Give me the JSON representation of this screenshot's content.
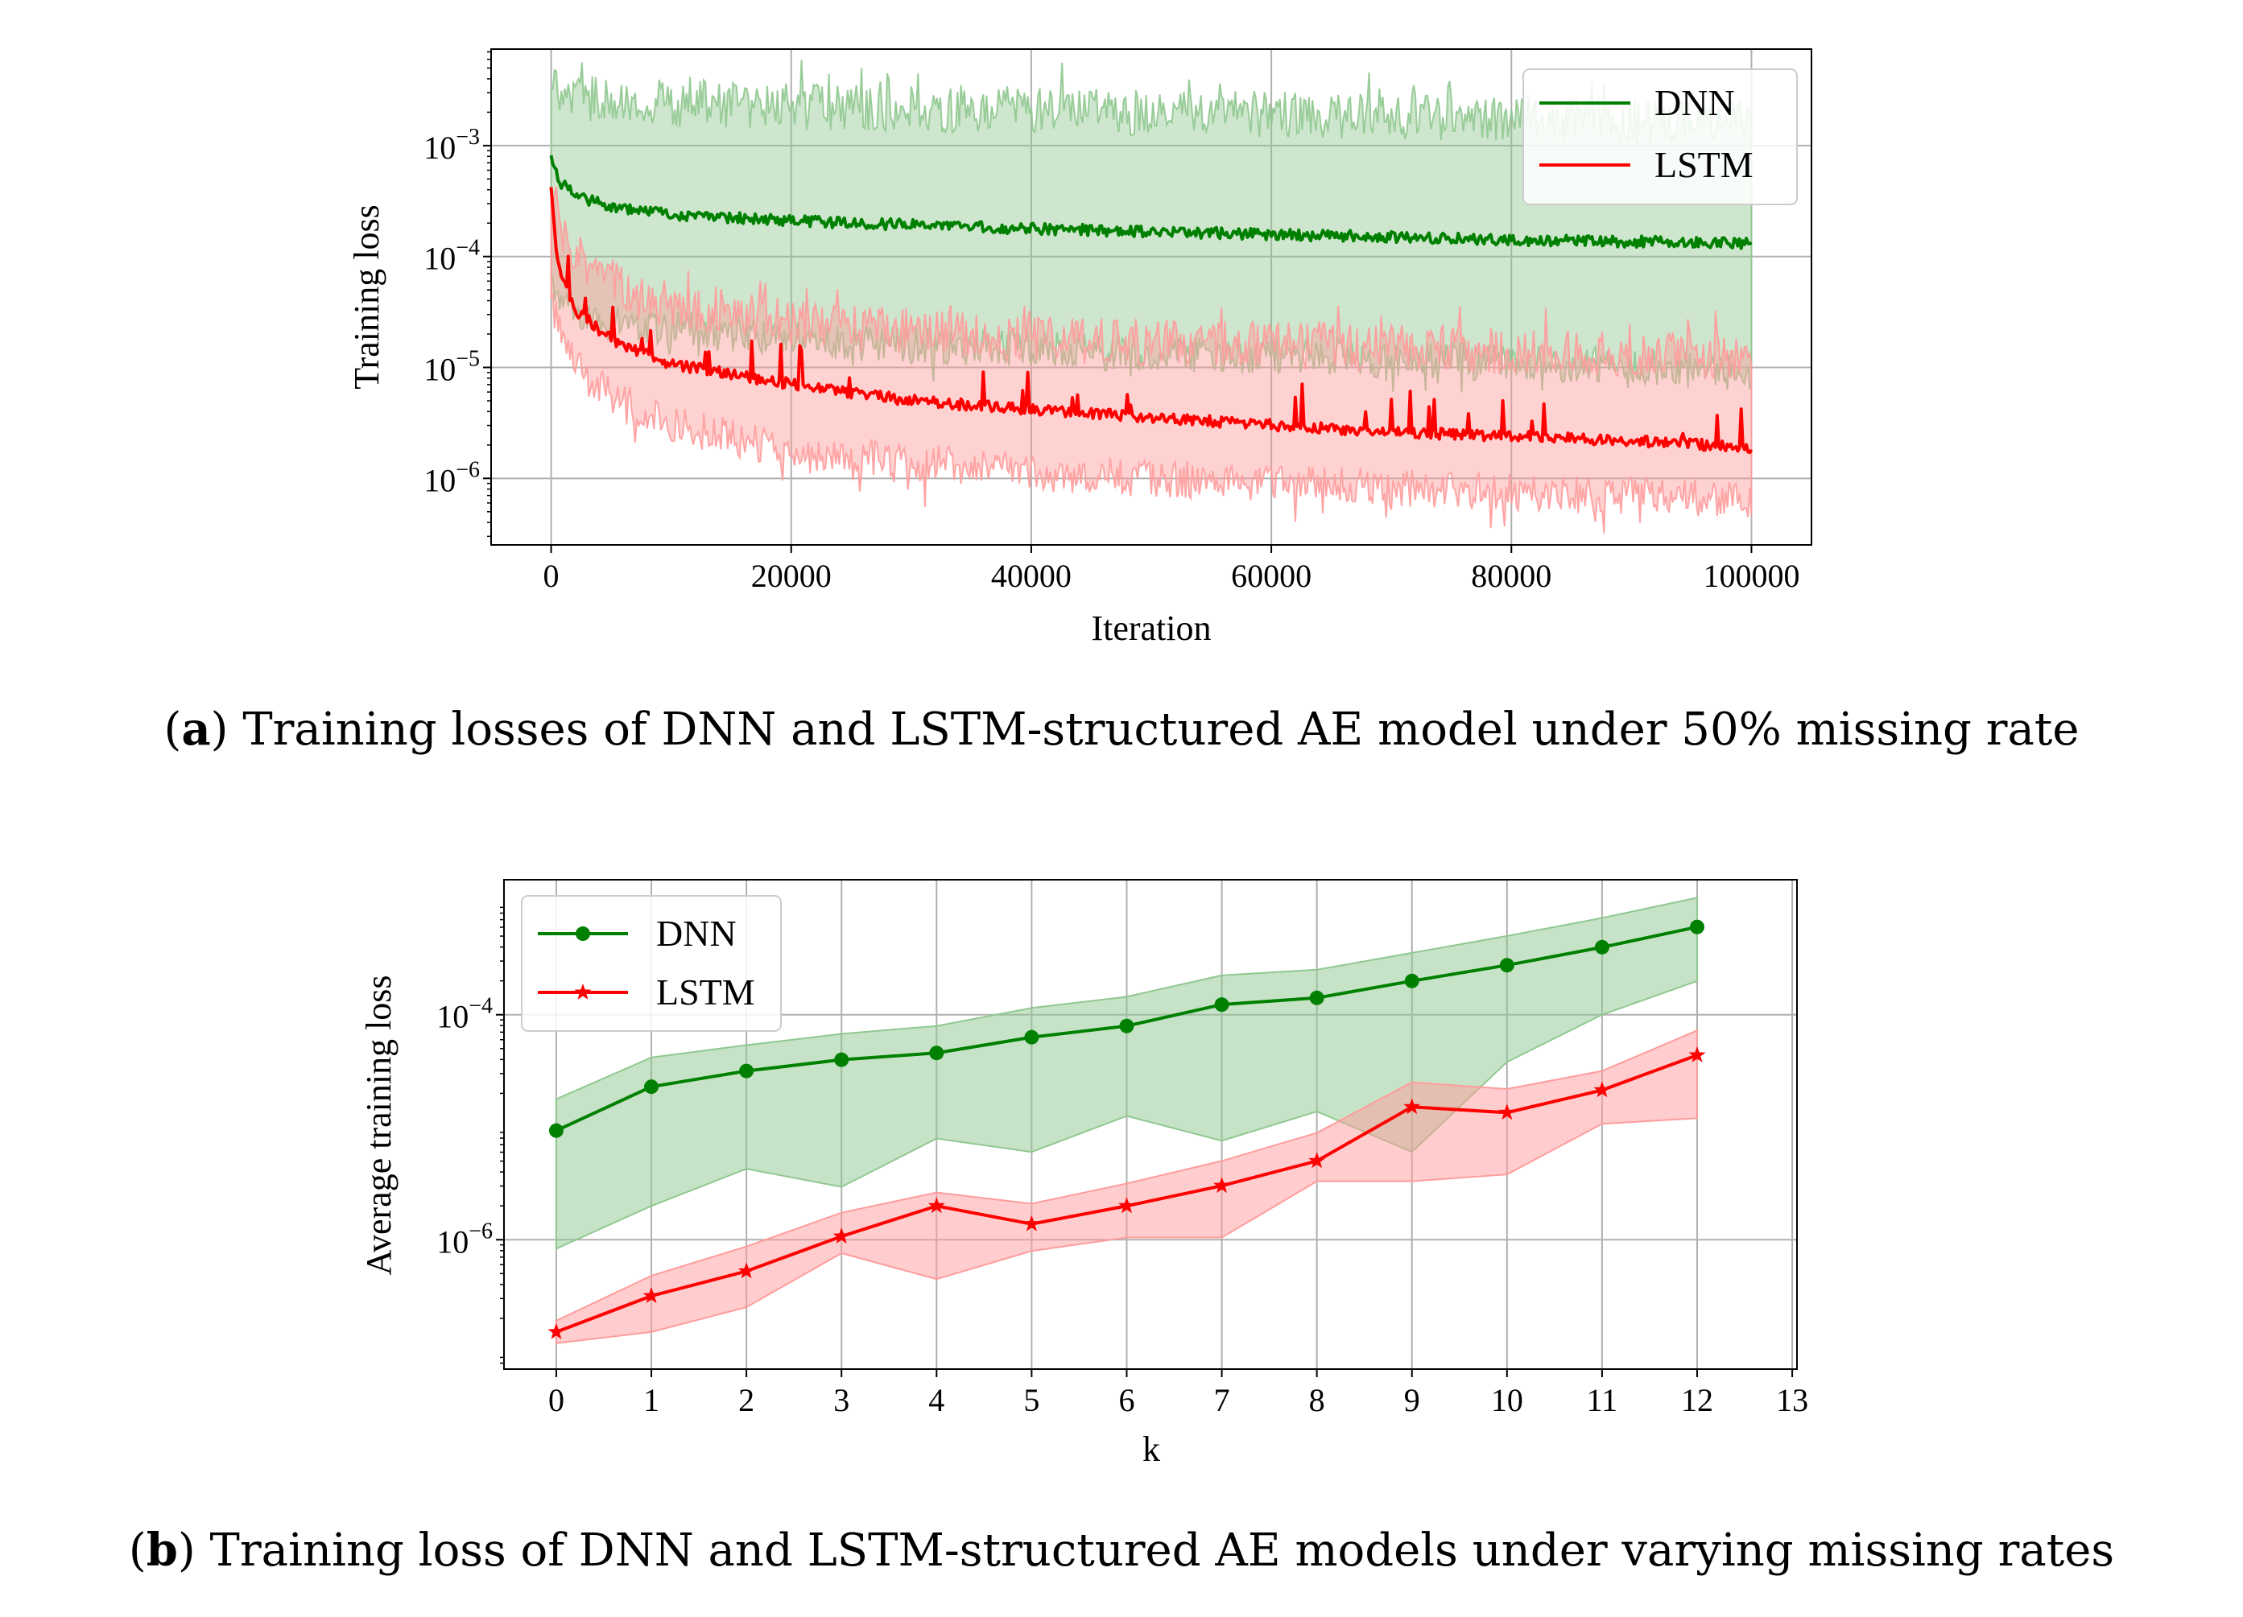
{
  "chart_data": [
    {
      "type": "line",
      "panel": "a",
      "caption_letter": "a",
      "caption_text": "Training losses of DNN and LSTM-structured AE model under 50% missing rate",
      "xlabel": "Iteration",
      "ylabel": "Training loss",
      "xlim": [
        -5000,
        105000
      ],
      "ylim_log10": [
        -6.6,
        -2.13
      ],
      "y_scale": "log",
      "grid": true,
      "legend_position": "upper right",
      "x_ticks": [
        0,
        20000,
        40000,
        60000,
        80000,
        100000
      ],
      "x_tick_labels": [
        "0",
        "20000",
        "40000",
        "60000",
        "80000",
        "100000"
      ],
      "y_tick_exponents": [
        -6,
        -5,
        -4,
        -3
      ],
      "y_tick_labels": [
        "10",
        "10",
        "10",
        "10"
      ],
      "y_tick_sup": [
        "−6",
        "−5",
        "−4",
        "−3"
      ],
      "series": [
        {
          "name": "DNN",
          "color": "#008000",
          "band_color": "#90c890",
          "mean_log10": {
            "x": [
              0,
              500,
              2000,
              5000,
              10000,
              20000,
              40000,
              60000,
              80000,
              100000
            ],
            "y": [
              -3.05,
              -3.3,
              -3.45,
              -3.55,
              -3.62,
              -3.68,
              -3.75,
              -3.8,
              -3.85,
              -3.88
            ]
          },
          "upper_log10": {
            "x": [
              0,
              1000,
              5000,
              20000,
              50000,
              80000,
              100000
            ],
            "y": [
              -2.5,
              -2.55,
              -2.6,
              -2.65,
              -2.7,
              -2.75,
              -2.8
            ]
          },
          "lower_log10": {
            "x": [
              0,
              1000,
              3000,
              10000,
              20000,
              40000,
              60000,
              80000,
              100000
            ],
            "y": [
              -4.2,
              -4.4,
              -4.55,
              -4.65,
              -4.75,
              -4.85,
              -4.9,
              -4.95,
              -5.05
            ]
          }
        },
        {
          "name": "LSTM",
          "color": "#ff0000",
          "band_color": "#ff9c9c",
          "mean_log10": {
            "x": [
              0,
              500,
              1500,
              3000,
              6000,
              10000,
              20000,
              30000,
              40000,
              50000,
              60000,
              70000,
              80000,
              90000,
              100000
            ],
            "y": [
              -3.4,
              -4.0,
              -4.4,
              -4.6,
              -4.8,
              -4.97,
              -5.15,
              -5.3,
              -5.38,
              -5.45,
              -5.52,
              -5.58,
              -5.62,
              -5.66,
              -5.72
            ]
          },
          "upper_log10": {
            "x": [
              0,
              1000,
              3000,
              8000,
              20000,
              40000,
              60000,
              80000,
              100000
            ],
            "y": [
              -3.4,
              -3.8,
              -4.1,
              -4.4,
              -4.6,
              -4.75,
              -4.8,
              -4.85,
              -4.9
            ]
          },
          "lower_log10": {
            "x": [
              0,
              1000,
              3000,
              6000,
              10000,
              20000,
              40000,
              60000,
              80000,
              100000
            ],
            "y": [
              -4.4,
              -4.8,
              -5.1,
              -5.3,
              -5.5,
              -5.75,
              -5.95,
              -6.05,
              -6.12,
              -6.2
            ]
          }
        }
      ]
    },
    {
      "type": "line",
      "panel": "b",
      "caption_letter": "b",
      "caption_text": "Training loss of DNN and LSTM-structured AE models under varying missing rates",
      "xlabel": "k",
      "ylabel": "Average training loss",
      "xlim": [
        -0.55,
        13.05
      ],
      "ylim_log10": [
        -7.15,
        -2.8
      ],
      "y_scale": "log",
      "grid": true,
      "legend_position": "upper left",
      "x_ticks": [
        0,
        1,
        2,
        3,
        4,
        5,
        6,
        7,
        8,
        9,
        10,
        11,
        12,
        13
      ],
      "x_tick_labels": [
        "0",
        "1",
        "2",
        "3",
        "4",
        "5",
        "6",
        "7",
        "8",
        "9",
        "10",
        "11",
        "12",
        "13"
      ],
      "y_tick_exponents": [
        -6,
        -4
      ],
      "y_tick_labels": [
        "10",
        "10"
      ],
      "y_tick_sup": [
        "−6",
        "−4"
      ],
      "categories": [
        0,
        1,
        2,
        3,
        4,
        5,
        6,
        7,
        8,
        9,
        10,
        11,
        12
      ],
      "series": [
        {
          "name": "DNN",
          "color": "#008000",
          "band_color": "#90c890",
          "marker": "circle",
          "values_log10": [
            -5.03,
            -4.64,
            -4.5,
            -4.4,
            -4.34,
            -4.2,
            -4.1,
            -3.91,
            -3.85,
            -3.7,
            -3.56,
            -3.4,
            -3.22
          ],
          "upper_log10": [
            -4.75,
            -4.38,
            -4.27,
            -4.17,
            -4.1,
            -3.94,
            -3.84,
            -3.65,
            -3.6,
            -3.45,
            -3.3,
            -3.14,
            -2.96
          ],
          "lower_log10": [
            -6.08,
            -5.7,
            -5.37,
            -5.53,
            -5.1,
            -5.22,
            -4.9,
            -5.12,
            -4.86,
            -5.22,
            -4.42,
            -4.0,
            -3.7
          ]
        },
        {
          "name": "LSTM",
          "color": "#ff0000",
          "band_color": "#ff9c9c",
          "marker": "star",
          "values_log10": [
            -6.82,
            -6.5,
            -6.28,
            -5.97,
            -5.7,
            -5.86,
            -5.7,
            -5.52,
            -5.3,
            -4.82,
            -4.87,
            -4.67,
            -4.36
          ],
          "upper_log10": [
            -6.72,
            -6.32,
            -6.06,
            -5.76,
            -5.58,
            -5.68,
            -5.5,
            -5.3,
            -5.05,
            -4.6,
            -4.66,
            -4.5,
            -4.14
          ],
          "lower_log10": [
            -6.92,
            -6.82,
            -6.6,
            -6.12,
            -6.35,
            -6.1,
            -5.98,
            -5.98,
            -5.48,
            -5.48,
            -5.42,
            -4.97,
            -4.92
          ]
        }
      ]
    }
  ]
}
